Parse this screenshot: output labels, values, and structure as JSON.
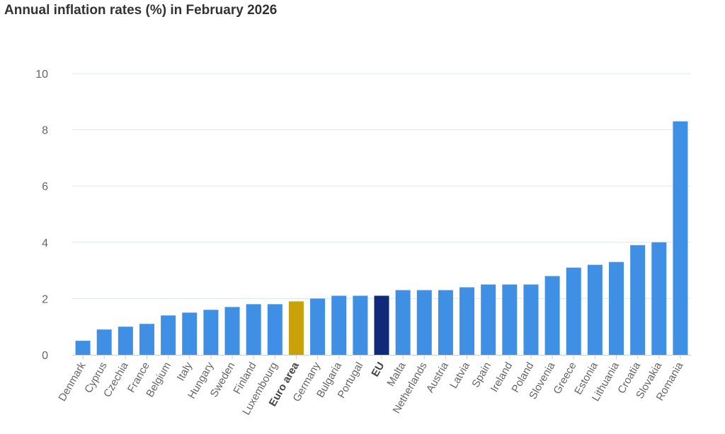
{
  "chart_data": {
    "type": "bar",
    "title": "Annual inflation rates (%) in February 2026",
    "xlabel": "",
    "ylabel": "",
    "ylim": [
      0,
      10
    ],
    "yticks": [
      0,
      2,
      4,
      6,
      8,
      10
    ],
    "grid": true,
    "legend": "none",
    "categories": [
      "Denmark",
      "Cyprus",
      "Czechia",
      "France",
      "Belgium",
      "Italy",
      "Hungary",
      "Sweden",
      "Finland",
      "Luxembourg",
      "Euro area",
      "Germany",
      "Bulgaria",
      "Portugal",
      "EU",
      "Malta",
      "Netherlands",
      "Austria",
      "Latvia",
      "Spain",
      "Ireland",
      "Poland",
      "Slovenia",
      "Greece",
      "Estonia",
      "Lithuania",
      "Croatia",
      "Slovakia",
      "Romania"
    ],
    "values": [
      0.5,
      0.9,
      1.0,
      1.1,
      1.4,
      1.5,
      1.6,
      1.7,
      1.8,
      1.8,
      1.9,
      2.0,
      2.1,
      2.1,
      2.1,
      2.3,
      2.3,
      2.3,
      2.4,
      2.5,
      2.5,
      2.5,
      2.8,
      3.1,
      3.2,
      3.3,
      3.9,
      4.0,
      8.3
    ],
    "highlight": {
      "Euro area": "#c9a20a",
      "EU": "#0e2a78"
    },
    "bold_categories": [
      "Euro area",
      "EU"
    ],
    "colors": {
      "bar": "#3f8fe5",
      "grid": "#dbe7f3",
      "axis": "#c6cfd8"
    }
  }
}
